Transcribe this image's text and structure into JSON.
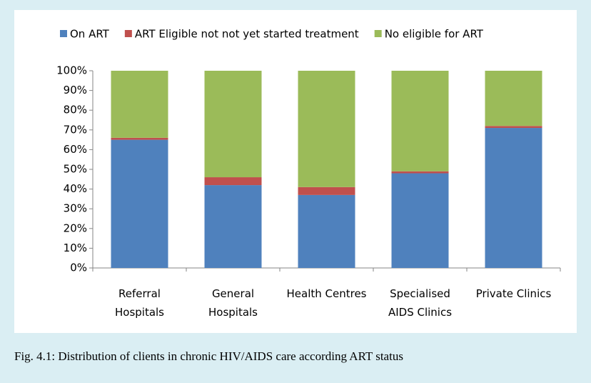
{
  "chart_data": {
    "type": "stacked_bar",
    "caption": "Fig. 4.1: Distribution of clients in chronic HIV/AIDS care according ART status",
    "categories": [
      "Referral\nHospitals",
      "General\nHospitals",
      "Health Centres",
      "Specialised\nAIDS Clinics",
      "Private Clinics"
    ],
    "series": [
      {
        "name": "On ART",
        "color": "#4f81bd",
        "values": [
          65,
          42,
          37,
          48,
          71
        ]
      },
      {
        "name": "ART Eligible not not yet started treatment",
        "color": "#c0504d",
        "values": [
          1,
          4,
          4,
          1,
          1
        ]
      },
      {
        "name": "No eligible for ART",
        "color": "#9bbb59",
        "values": [
          34,
          54,
          59,
          51,
          28
        ]
      }
    ],
    "ylim": [
      0,
      100
    ],
    "yticks": [
      {
        "value": 0,
        "label": "0%"
      },
      {
        "value": 10,
        "label": "10%"
      },
      {
        "value": 20,
        "label": "20%"
      },
      {
        "value": 30,
        "label": "30%"
      },
      {
        "value": 40,
        "label": "40%"
      },
      {
        "value": 50,
        "label": "50%"
      },
      {
        "value": 60,
        "label": "60%"
      },
      {
        "value": 70,
        "label": "70%"
      },
      {
        "value": 80,
        "label": "80%"
      },
      {
        "value": 90,
        "label": "90%"
      },
      {
        "value": 100,
        "label": "100%"
      }
    ],
    "legend": "top"
  }
}
